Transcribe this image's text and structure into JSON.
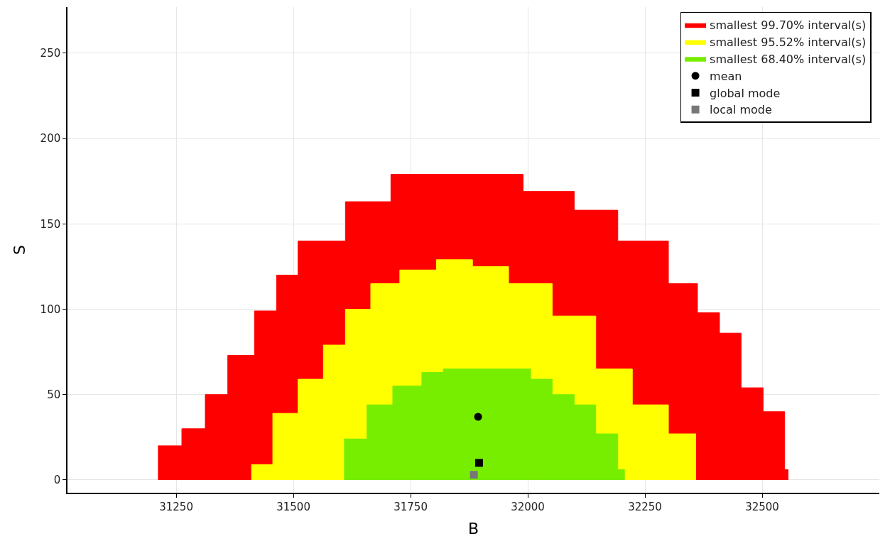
{
  "chart_data": {
    "type": "area",
    "xlabel": "B",
    "ylabel": "S",
    "xlim": [
      31018,
      32750
    ],
    "ylim": [
      -7.5,
      277
    ],
    "xticks": [
      31250,
      31500,
      31750,
      32000,
      32250,
      32500
    ],
    "yticks": [
      0,
      50,
      100,
      150,
      200,
      250
    ],
    "grid": true,
    "legend": "top right",
    "line_style": "solid",
    "series": [
      {
        "name": "smallest 99.70% interval(s)",
        "color": "#ff0000",
        "x": [
          31211,
          31262,
          31262,
          31312,
          31312,
          31360,
          31360,
          31417,
          31417,
          31464,
          31464,
          31510,
          31510,
          31611,
          31611,
          31708,
          31708,
          31990,
          31990,
          32099,
          32099,
          32192,
          32192,
          32300,
          32300,
          32362,
          32362,
          32409,
          32409,
          32455,
          32455,
          32502,
          32502,
          32548,
          32548,
          32556
        ],
        "values": [
          20,
          20,
          30,
          30,
          50,
          50,
          73,
          73,
          99,
          99,
          120,
          120,
          140,
          140,
          163,
          163,
          179,
          179,
          169,
          169,
          158,
          158,
          140,
          140,
          115,
          115,
          98,
          98,
          86,
          86,
          54,
          54,
          40,
          40,
          6,
          6
        ]
      },
      {
        "name": "smallest 95.52% interval(s)",
        "color": "#ffff00",
        "x": [
          31410,
          31456,
          31456,
          31510,
          31510,
          31564,
          31564,
          31611,
          31611,
          31665,
          31665,
          31727,
          31727,
          31805,
          31805,
          31882,
          31882,
          31959,
          31959,
          32052,
          32052,
          32145,
          32145,
          32223,
          32223,
          32300,
          32300,
          32359
        ],
        "values": [
          9,
          9,
          39,
          39,
          59,
          59,
          79,
          79,
          100,
          100,
          115,
          115,
          123,
          123,
          129,
          129,
          125,
          125,
          115,
          115,
          96,
          96,
          65,
          65,
          44,
          44,
          27,
          27
        ]
      },
      {
        "name": "smallest 68.40% interval(s)",
        "color": "#77ee00",
        "x": [
          31608,
          31657,
          31657,
          31712,
          31712,
          31774,
          31774,
          31820,
          31820,
          32006,
          32006,
          32052,
          32052,
          32099,
          32099,
          32145,
          32145,
          32192,
          32192,
          32207
        ],
        "values": [
          24,
          24,
          44,
          44,
          55,
          55,
          63,
          63,
          65,
          65,
          59,
          59,
          50,
          50,
          44,
          44,
          27,
          27,
          6,
          6
        ]
      },
      {
        "name": "mean",
        "type": "scatter",
        "marker": "circle",
        "color": "#000000",
        "x": [
          31894
        ],
        "values": [
          37
        ]
      },
      {
        "name": "global mode",
        "type": "scatter",
        "marker": "square",
        "color": "#000000",
        "x": [
          31896
        ],
        "values": [
          10
        ]
      },
      {
        "name": "local mode",
        "type": "scatter",
        "marker": "square",
        "color": "#777777",
        "x": [
          31885
        ],
        "values": [
          3
        ]
      }
    ]
  }
}
